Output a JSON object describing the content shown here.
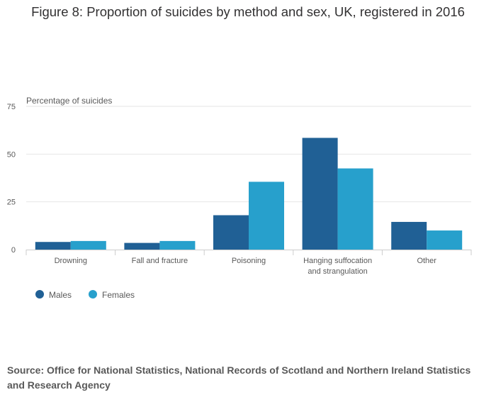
{
  "title": "Figure 8: Proportion of suicides by method and sex, UK, registered in 2016",
  "source": "Source: Office for National Statistics, National Records of Scotland and Northern Ireland Statistics and Research Agency",
  "colors": {
    "males": "#206095",
    "females": "#27a0cc",
    "grid": "#e6e6e6",
    "axis": "#cccccc",
    "text": "#595959"
  },
  "chart_data": {
    "type": "bar",
    "title": "Figure 8: Proportion of suicides by method and sex, UK, registered in 2016",
    "ylabel": "Percentage of suicides",
    "xlabel": "",
    "ylim": [
      0,
      75
    ],
    "yticks": [
      0,
      25,
      50,
      75
    ],
    "grid": true,
    "legend": "bottom-left",
    "categories": [
      [
        "Drowning"
      ],
      [
        "Fall and fracture"
      ],
      [
        "Poisoning"
      ],
      [
        "Hanging suffocation",
        "and strangulation"
      ],
      [
        "Other"
      ]
    ],
    "series": [
      {
        "name": "Males",
        "color": "#206095",
        "values": [
          4,
          3.5,
          18,
          58.5,
          14.5
        ]
      },
      {
        "name": "Females",
        "color": "#27a0cc",
        "values": [
          4.5,
          4.5,
          35.5,
          42.5,
          10
        ]
      }
    ]
  }
}
